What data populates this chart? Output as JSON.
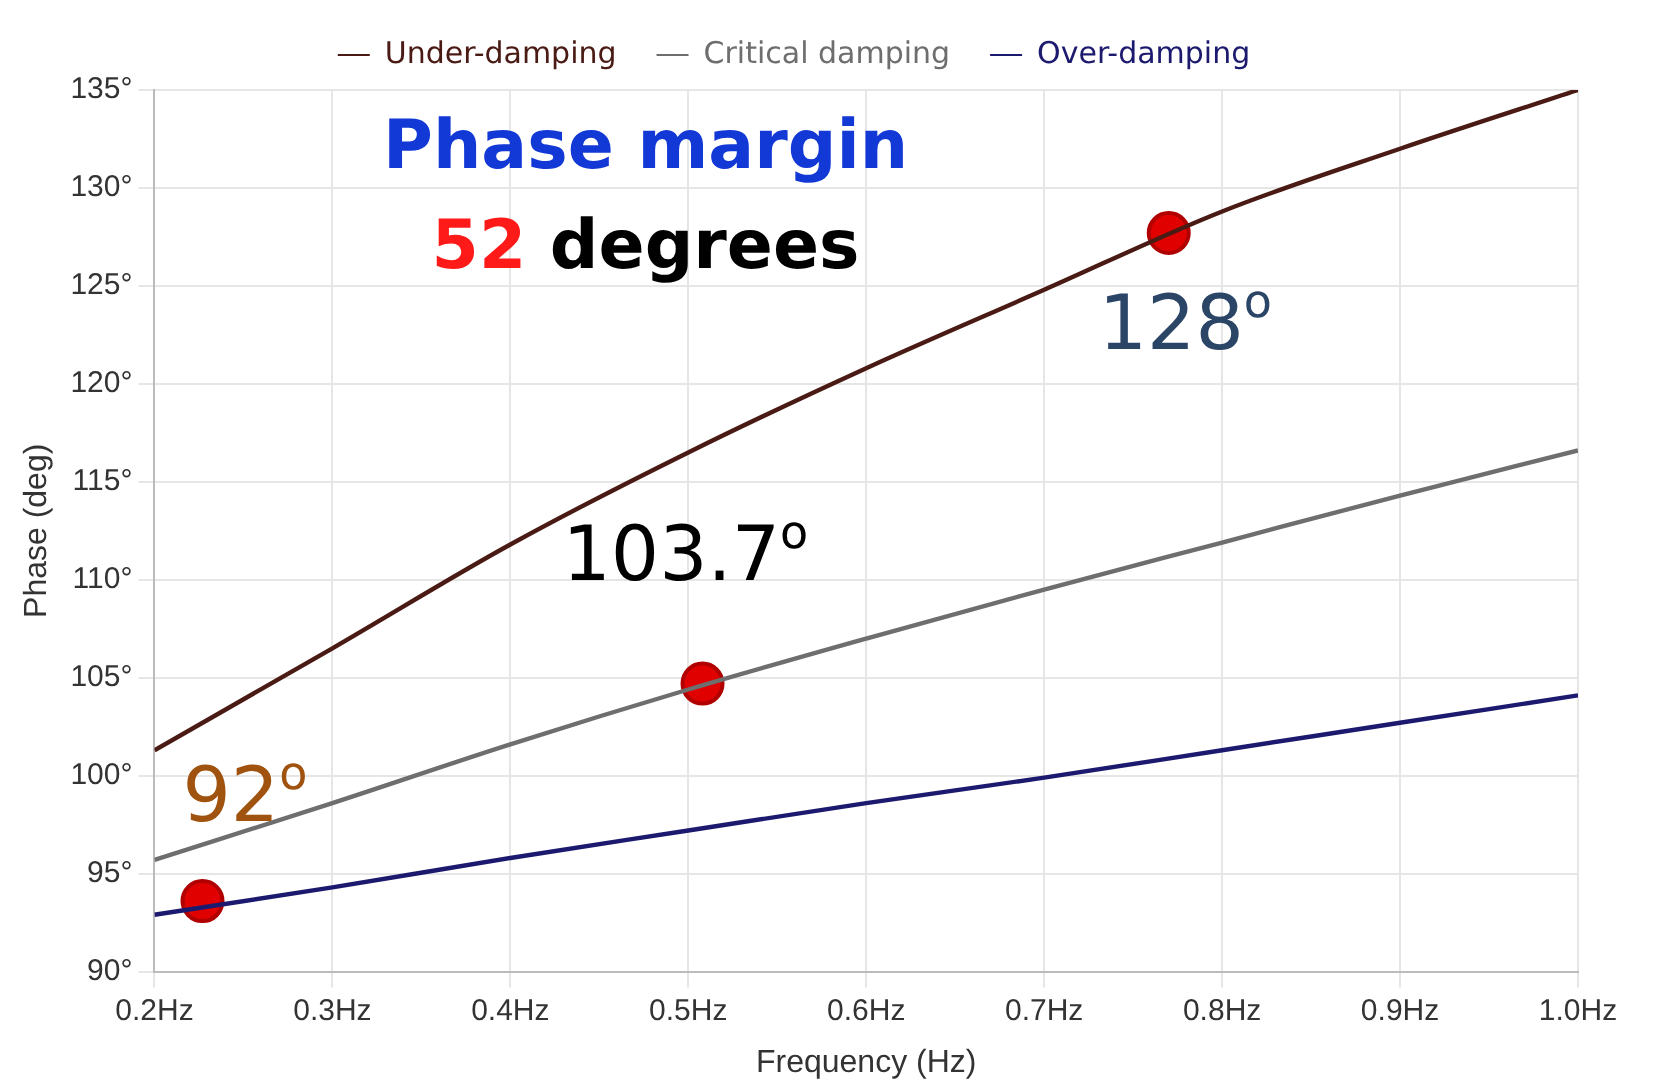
{
  "chart_data": {
    "type": "line",
    "xlabel": "Frequency (Hz)",
    "ylabel": "Phase (deg)",
    "x": [
      0.2,
      0.3,
      0.4,
      0.5,
      0.6,
      0.7,
      0.8,
      0.9,
      1.0
    ],
    "series": [
      {
        "name": "Under-damping",
        "color": "#4a1a14",
        "values": [
          101.3,
          106.5,
          111.8,
          116.5,
          120.8,
          124.8,
          128.8,
          132,
          135
        ]
      },
      {
        "name": "Critical damping",
        "color": "#6e6e6e",
        "values": [
          95.7,
          98.6,
          101.6,
          104.4,
          107.0,
          109.5,
          111.9,
          114.3,
          116.6
        ]
      },
      {
        "name": "Over-damping",
        "color": "#1c1a6e",
        "values": [
          92.9,
          94.3,
          95.8,
          97.2,
          98.6,
          99.9,
          101.3,
          102.7,
          104.1
        ]
      },
      {
        "type": "scatter",
        "marker": "circle",
        "color": "#e00000",
        "x": [
          0.227,
          0.508,
          0.77
        ],
        "values": [
          93.6,
          104.7,
          127.7
        ]
      }
    ],
    "xlim": [
      0.2,
      1.0
    ],
    "ylim": [
      90,
      135
    ],
    "xticks": [
      {
        "value": 0.2,
        "label": "0.2Hz"
      },
      {
        "value": 0.3,
        "label": "0.3Hz"
      },
      {
        "value": 0.4,
        "label": "0.4Hz"
      },
      {
        "value": 0.5,
        "label": "0.5Hz"
      },
      {
        "value": 0.6,
        "label": "0.6Hz"
      },
      {
        "value": 0.7,
        "label": "0.7Hz"
      },
      {
        "value": 0.8,
        "label": "0.8Hz"
      },
      {
        "value": 0.9,
        "label": "0.9Hz"
      },
      {
        "value": 1.0,
        "label": "1.0Hz"
      }
    ],
    "yticks": [
      {
        "value": 90,
        "label": "90°"
      },
      {
        "value": 95,
        "label": "95°"
      },
      {
        "value": 100,
        "label": "100°"
      },
      {
        "value": 105,
        "label": "105°"
      },
      {
        "value": 110,
        "label": "110°"
      },
      {
        "value": 115,
        "label": "115°"
      },
      {
        "value": 120,
        "label": "120°"
      },
      {
        "value": 125,
        "label": "125°"
      },
      {
        "value": 130,
        "label": "130°"
      },
      {
        "value": 135,
        "label": "135°"
      }
    ],
    "annotations": [
      "Phase margin",
      "52 degrees",
      {
        "text": "92$^{o}$",
        "x": 0.227,
        "y": 93.6
      },
      {
        "text": "103.7$^{o}$",
        "x": 0.508,
        "y": 104.7
      },
      {
        "text": "128$^{o}$",
        "x": 0.77,
        "y": 127.7
      }
    ],
    "grid": true,
    "legend": "top",
    "line_style": "solid"
  }
}
